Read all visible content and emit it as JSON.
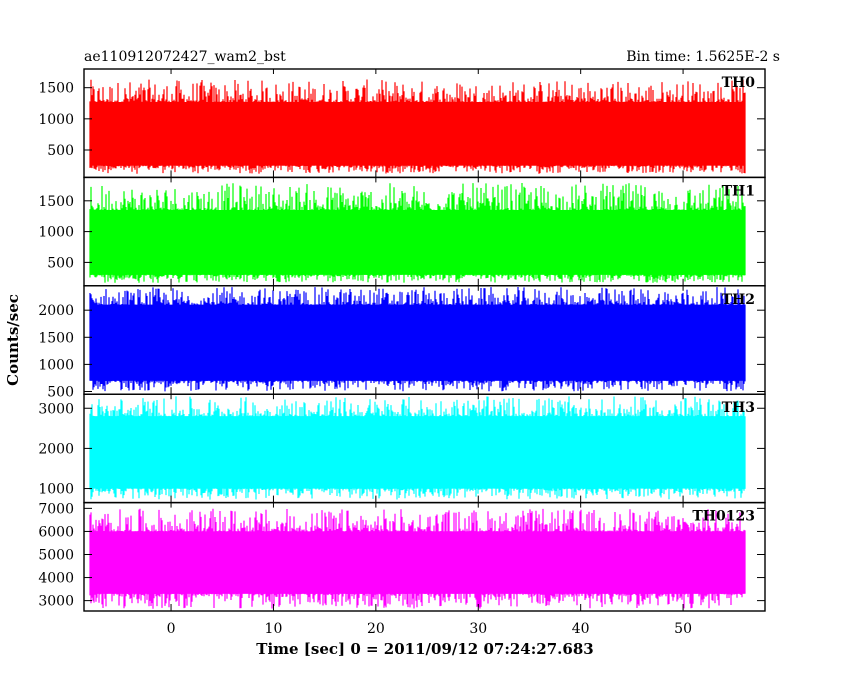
{
  "header": {
    "left_title": "ae110912072427_wam2_bst",
    "right_title": "Bin time: 1.5625E-2 s"
  },
  "chart_data": {
    "type": "line",
    "xlabel": "Time [sec] 0 = 2011/09/12 07:24:27.683",
    "ylabel": "Counts/sec",
    "xlim": [
      -8.5,
      58
    ],
    "x_ticks": [
      0,
      10,
      20,
      30,
      40,
      50
    ],
    "x_range_data": [
      -7.9,
      56
    ],
    "grid": false,
    "panels": [
      {
        "name": "TH0",
        "color": "#ff0000",
        "ylim": [
          60,
          1800
        ],
        "y_ticks": [
          500,
          1000,
          1500
        ],
        "band": {
          "p1": 130,
          "p10": 250,
          "mean": 730,
          "p90": 1270,
          "p99": 1600
        }
      },
      {
        "name": "TH1",
        "color": "#00ff00",
        "ylim": [
          120,
          1880
        ],
        "y_ticks": [
          500,
          1000,
          1500
        ],
        "band": {
          "p1": 180,
          "p10": 300,
          "mean": 780,
          "p90": 1350,
          "p99": 1750
        }
      },
      {
        "name": "TH2",
        "color": "#0000ff",
        "ylim": [
          450,
          2450
        ],
        "y_ticks": [
          500,
          1000,
          1500,
          2000
        ],
        "band": {
          "p1": 520,
          "p10": 700,
          "mean": 1380,
          "p90": 2100,
          "p99": 2400
        }
      },
      {
        "name": "TH3",
        "color": "#00ffff",
        "ylim": [
          650,
          3350
        ],
        "y_ticks": [
          1000,
          2000,
          3000
        ],
        "band": {
          "p1": 750,
          "p10": 1000,
          "mean": 1880,
          "p90": 2800,
          "p99": 3250
        }
      },
      {
        "name": "TH0123",
        "color": "#ff00ff",
        "ylim": [
          2550,
          7250
        ],
        "y_ticks": [
          3000,
          4000,
          5000,
          6000,
          7000
        ],
        "band": {
          "p1": 2700,
          "p10": 3300,
          "mean": 4620,
          "p90": 6000,
          "p99": 6900
        }
      }
    ]
  }
}
